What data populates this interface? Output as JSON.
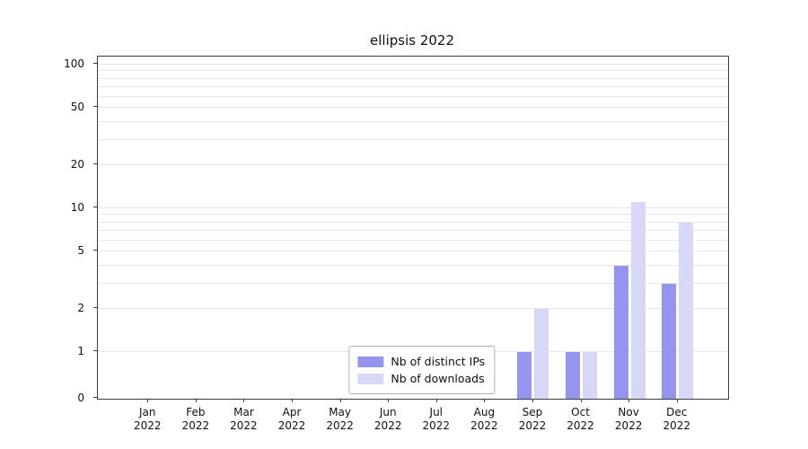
{
  "title": "ellipsis 2022",
  "chart_data": {
    "type": "bar",
    "title": "ellipsis 2022",
    "x_year_line": "2022",
    "categories": [
      "Jan",
      "Feb",
      "Mar",
      "Apr",
      "May",
      "Jun",
      "Jul",
      "Aug",
      "Sep",
      "Oct",
      "Nov",
      "Dec"
    ],
    "series": [
      {
        "name": "Nb of distinct IPs",
        "color": "#9395ef",
        "values": [
          0,
          0,
          0,
          0,
          0,
          0,
          0,
          0,
          1,
          1,
          4,
          3
        ]
      },
      {
        "name": "Nb of downloads",
        "color": "#d7d7f8",
        "values": [
          0,
          0,
          0,
          0,
          0,
          0,
          0,
          0,
          2,
          1,
          11,
          8
        ]
      }
    ],
    "yticks": [
      0,
      1,
      2,
      5,
      10,
      20,
      50,
      100
    ],
    "gridlines": [
      1,
      2,
      3,
      4,
      5,
      6,
      7,
      8,
      9,
      10,
      20,
      30,
      40,
      50,
      60,
      70,
      80,
      90,
      100
    ],
    "scale": "symlog",
    "ylim": [
      0,
      130
    ],
    "grid": "horizontal",
    "legend_position": "lower center"
  }
}
